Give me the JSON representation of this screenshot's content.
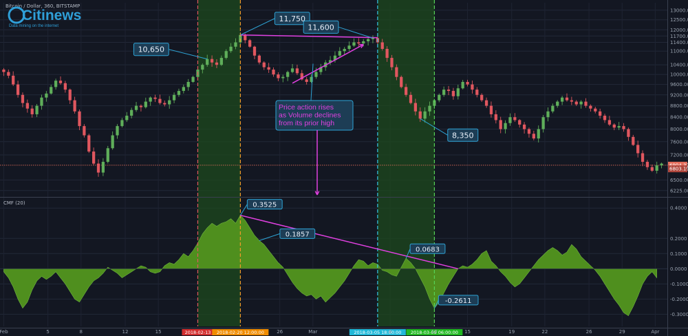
{
  "header": {
    "symbol_title": "Bitcoin / Dollar, 360, BITSTAMP",
    "cmf_label": "CMF (20)"
  },
  "logo": {
    "brand": "Citinews",
    "tagline": "Data mining on the internet"
  },
  "colors": {
    "background": "#131722",
    "up_candle": "#5fae5a",
    "down_candle": "#e0575f",
    "cmf_fill": "#4f8f1e",
    "annotation_line": "#e040e0",
    "callout_fill": "#1d3d55",
    "callout_border": "#2ea4d6",
    "highlight_zone": "#1d4a1d",
    "last_price_line": "#e36d5b"
  },
  "annotation_text": [
    "Price action rises",
    "as Volume declines",
    "from its prior high"
  ],
  "chart_data": [
    {
      "type": "candlestick",
      "name": "price",
      "x_axis": {
        "ticks": [
          {
            "label": "Feb",
            "x": 0
          },
          {
            "label": "5",
            "x": 4
          },
          {
            "label": "8",
            "x": 7
          },
          {
            "label": "12",
            "x": 11
          },
          {
            "label": "15",
            "x": 14
          },
          {
            "label": "26",
            "x": 25
          },
          {
            "label": "Mar",
            "x": 28
          },
          {
            "label": "8",
            "x": 35
          },
          {
            "label": "12",
            "x": 39
          },
          {
            "label": "15",
            "x": 42
          },
          {
            "label": "19",
            "x": 46
          },
          {
            "label": "22",
            "x": 49
          },
          {
            "label": "26",
            "x": 53
          },
          {
            "label": "29",
            "x": 56
          },
          {
            "label": "Apr",
            "x": 59
          }
        ]
      },
      "y_axis": {
        "ticks": [
          6225,
          6500,
          7200,
          7600,
          8000,
          8400,
          8800,
          9200,
          9600,
          10000,
          10400,
          11000,
          11400,
          11700,
          12000,
          12500,
          13000
        ],
        "tick_labels": [
          "6225.00",
          "6500.00",
          "7200.00",
          "7600.00",
          "8000.00",
          "8400.00",
          "8800.00",
          "9200.00",
          "9600.00",
          "10000.00",
          "10400.00",
          "11000.00",
          "11400.00",
          "11700.00",
          "12000.00",
          "12500.00",
          "13000.00"
        ],
        "scale": "log",
        "range": [
          6100,
          13400
        ]
      },
      "last_price": {
        "value": 6904.32,
        "label": "6904.32"
      },
      "secondary_price": {
        "value": 6803.19,
        "label": "6803.19"
      },
      "closes": [
        10100,
        9950,
        9600,
        9200,
        8900,
        8700,
        8500,
        8800,
        9100,
        9250,
        9500,
        9750,
        9650,
        9400,
        9000,
        8600,
        8100,
        7800,
        7300,
        6950,
        6700,
        7000,
        7400,
        7800,
        8100,
        8300,
        8450,
        8650,
        8800,
        8750,
        8950,
        9100,
        9050,
        8900,
        8850,
        9000,
        9200,
        9350,
        9500,
        9700,
        9900,
        10200,
        10400,
        10650,
        10500,
        10400,
        10700,
        11000,
        11200,
        11400,
        11750,
        11500,
        11200,
        10800,
        10500,
        10300,
        10200,
        10000,
        9850,
        9900,
        10100,
        10250,
        10050,
        9800,
        9700,
        9900,
        10100,
        10300,
        10500,
        10600,
        10800,
        11000,
        11100,
        11250,
        11400,
        11350,
        11450,
        11550,
        11600,
        11400,
        11100,
        10700,
        10300,
        9900,
        9500,
        9200,
        8900,
        8600,
        8350,
        8600,
        8800,
        9000,
        9200,
        9400,
        9350,
        9150,
        9450,
        9700,
        9600,
        9400,
        9200,
        9000,
        8800,
        8500,
        8300,
        8000,
        8200,
        8400,
        8300,
        8150,
        8000,
        7850,
        7700,
        8000,
        8400,
        8600,
        8800,
        8950,
        9100,
        9000,
        8950,
        8850,
        8950,
        8800,
        8700,
        8600,
        8450,
        8300,
        8150,
        8050,
        8100,
        8000,
        7750,
        7500,
        7250,
        7000,
        6850,
        6750,
        6900,
        6950
      ]
    },
    {
      "type": "area",
      "name": "CMF (20)",
      "y_axis": {
        "ticks": [
          0.4,
          0.2,
          0.1,
          0,
          -0.1,
          -0.2,
          -0.3
        ],
        "tick_labels": [
          "0.4000",
          "0.2000",
          "0.1000",
          "0.0000",
          "-0.1000",
          "-0.2000",
          "-0.3000"
        ],
        "range": [
          -0.38,
          0.46
        ]
      },
      "values": [
        -0.02,
        -0.06,
        -0.12,
        -0.2,
        -0.26,
        -0.22,
        -0.14,
        -0.08,
        -0.05,
        -0.07,
        -0.05,
        -0.02,
        -0.06,
        -0.1,
        -0.15,
        -0.2,
        -0.22,
        -0.17,
        -0.12,
        -0.08,
        -0.06,
        -0.03,
        0.01,
        -0.01,
        -0.03,
        -0.06,
        -0.04,
        -0.02,
        0.0,
        0.02,
        0.01,
        -0.02,
        -0.03,
        -0.02,
        0.02,
        0.04,
        0.03,
        0.06,
        0.1,
        0.08,
        0.12,
        0.17,
        0.23,
        0.27,
        0.3,
        0.28,
        0.3,
        0.31,
        0.33,
        0.3,
        0.3525,
        0.32,
        0.27,
        0.22,
        0.1857,
        0.16,
        0.12,
        0.08,
        0.04,
        0.01,
        -0.04,
        -0.09,
        -0.13,
        -0.16,
        -0.18,
        -0.17,
        -0.2,
        -0.18,
        -0.22,
        -0.19,
        -0.16,
        -0.12,
        -0.08,
        -0.03,
        0.02,
        0.06,
        0.05,
        0.02,
        0.04,
        0.03,
        -0.01,
        -0.02,
        -0.04,
        -0.05,
        0.01,
        0.0683,
        0.04,
        0.0,
        -0.06,
        -0.12,
        -0.2,
        -0.2611,
        -0.22,
        -0.16,
        -0.1,
        -0.05,
        0.0,
        0.02,
        0.01,
        0.03,
        0.06,
        0.1,
        0.12,
        0.05,
        0.02,
        -0.02,
        -0.05,
        -0.09,
        -0.12,
        -0.1,
        -0.06,
        -0.02,
        0.02,
        0.06,
        0.09,
        0.12,
        0.14,
        0.12,
        0.09,
        0.11,
        0.16,
        0.13,
        0.08,
        0.05,
        0.02,
        -0.01,
        -0.05,
        -0.1,
        -0.15,
        -0.2,
        -0.24,
        -0.29,
        -0.31,
        -0.25,
        -0.18,
        -0.1,
        -0.05,
        -0.02,
        -0.06
      ]
    }
  ],
  "callouts": [
    {
      "text": "10,650",
      "series": "price",
      "index": 43
    },
    {
      "text": "11,750",
      "series": "price",
      "index": 50
    },
    {
      "text": "11,600",
      "series": "price",
      "index": 78
    },
    {
      "text": "8,350",
      "series": "price",
      "index": 88
    },
    {
      "text": "0.3525",
      "series": "cmf",
      "index": 50
    },
    {
      "text": "0.1857",
      "series": "cmf",
      "index": 54
    },
    {
      "text": "0.0683",
      "series": "cmf",
      "index": 85
    },
    {
      "text": "-0.2611",
      "series": "cmf",
      "index": 91
    }
  ],
  "highlight_zones": [
    {
      "from_index": 41,
      "to_index": 50
    },
    {
      "from_index": 79,
      "to_index": 91
    }
  ],
  "event_lines": [
    {
      "index": 41,
      "color": "#e0575f",
      "label": "2018-02-13",
      "label_color": "#d32f2f"
    },
    {
      "index": 50,
      "color": "#f59b2a",
      "label": "2018-02-20 12:00:00",
      "label_color": "#f08c00"
    },
    {
      "index": 79,
      "color": "#35c6e8",
      "label": "2018-03-05 18:00:00",
      "label_color": "#20b8d8"
    },
    {
      "index": 91,
      "color": "#57d357",
      "label": "2018-03-09 06:00:00",
      "label_color": "#21b821"
    }
  ],
  "trend_lines": [
    {
      "series": "price",
      "from_index": 50,
      "from_value": 11750,
      "to_index": 79,
      "to_value": 11620
    },
    {
      "series": "cmf",
      "from_index": 50,
      "from_value": 0.3525,
      "to_index": 96,
      "to_value": 0.0
    }
  ]
}
